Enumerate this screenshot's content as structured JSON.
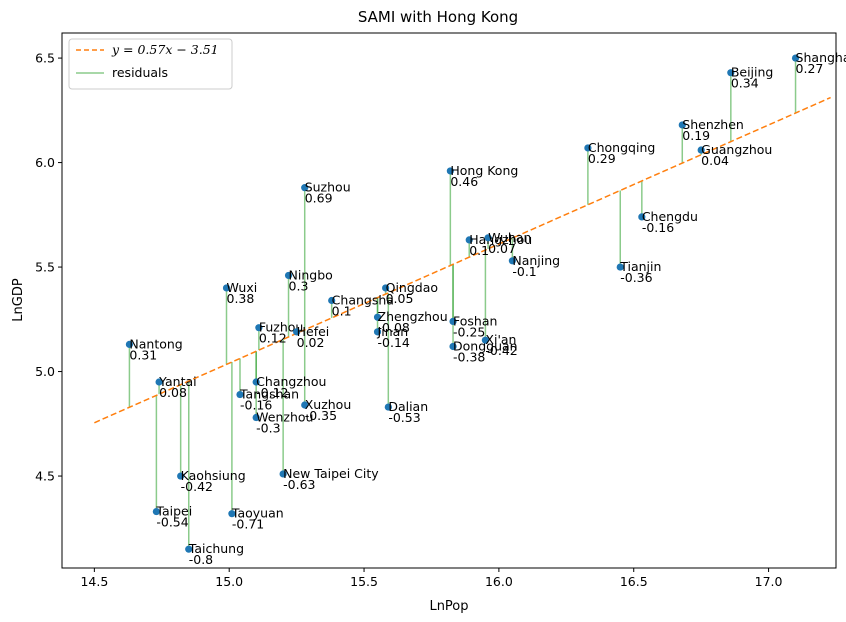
{
  "chart_data": {
    "type": "scatter",
    "title": "SAMI with Hong Kong",
    "xlabel": "LnPop",
    "ylabel": "LnGDP",
    "xlim": [
      14.38,
      17.25
    ],
    "ylim": [
      4.06,
      6.62
    ],
    "xticks": [
      14.5,
      15.0,
      15.5,
      16.0,
      16.5,
      17.0
    ],
    "xtick_labels": [
      "14.5",
      "15.0",
      "15.5",
      "16.0",
      "16.5",
      "17.0"
    ],
    "yticks": [
      4.5,
      5.0,
      5.5,
      6.0,
      6.5
    ],
    "ytick_labels": [
      "4.5",
      "5.0",
      "5.5",
      "6.0",
      "6.5"
    ],
    "grid": false,
    "legend_position": "top-left",
    "fit": {
      "slope": 0.57,
      "intercept": -3.51,
      "x_range": [
        14.5,
        17.23
      ]
    },
    "legend": {
      "fit_prefix": "y = 0.57x − 3.51",
      "residuals_label": "residuals"
    },
    "colors": {
      "points": "#1f77b4",
      "fit_line": "#ff7f0e",
      "residuals": "#2ca02c"
    },
    "points": [
      {
        "name": "Shanghai",
        "x": 17.1,
        "y": 6.5,
        "residual": "0.27"
      },
      {
        "name": "Beijing",
        "x": 16.86,
        "y": 6.43,
        "residual": "0.34"
      },
      {
        "name": "Shenzhen",
        "x": 16.68,
        "y": 6.18,
        "residual": "0.19"
      },
      {
        "name": "Guangzhou",
        "x": 16.75,
        "y": 6.06,
        "residual": "0.04"
      },
      {
        "name": "Chongqing",
        "x": 16.33,
        "y": 6.07,
        "residual": "0.29"
      },
      {
        "name": "Chengdu",
        "x": 16.53,
        "y": 5.74,
        "residual": "-0.16"
      },
      {
        "name": "Tianjin",
        "x": 16.45,
        "y": 5.5,
        "residual": "-0.36"
      },
      {
        "name": "Hong Kong",
        "x": 15.82,
        "y": 5.96,
        "residual": "0.46"
      },
      {
        "name": "Suzhou",
        "x": 15.28,
        "y": 5.88,
        "residual": "0.69"
      },
      {
        "name": "Hangzhou",
        "x": 15.89,
        "y": 5.63,
        "residual": "0.1"
      },
      {
        "name": "Wuhan",
        "x": 15.96,
        "y": 5.64,
        "residual": "0.07"
      },
      {
        "name": "Nanjing",
        "x": 16.05,
        "y": 5.53,
        "residual": "-0.1"
      },
      {
        "name": "Ningbo",
        "x": 15.22,
        "y": 5.46,
        "residual": "0.3"
      },
      {
        "name": "Wuxi",
        "x": 14.99,
        "y": 5.4,
        "residual": "0.38"
      },
      {
        "name": "Qingdao",
        "x": 15.58,
        "y": 5.4,
        "residual": "0.05"
      },
      {
        "name": "Changsha",
        "x": 15.38,
        "y": 5.34,
        "residual": "0.1"
      },
      {
        "name": "Zhengzhou",
        "x": 15.55,
        "y": 5.26,
        "residual": "-0.08"
      },
      {
        "name": "Foshan",
        "x": 15.83,
        "y": 5.24,
        "residual": "-0.25"
      },
      {
        "name": "Jinan",
        "x": 15.55,
        "y": 5.19,
        "residual": "-0.14"
      },
      {
        "name": "Fuzhou",
        "x": 15.11,
        "y": 5.21,
        "residual": "0.12"
      },
      {
        "name": "Hefei",
        "x": 15.25,
        "y": 5.19,
        "residual": "0.02"
      },
      {
        "name": "Xi'an",
        "x": 15.95,
        "y": 5.15,
        "residual": "-0.42"
      },
      {
        "name": "Dongguan",
        "x": 15.83,
        "y": 5.12,
        "residual": "-0.38"
      },
      {
        "name": "Nantong",
        "x": 14.63,
        "y": 5.13,
        "residual": "0.31"
      },
      {
        "name": "Changzhou",
        "x": 15.1,
        "y": 4.95,
        "residual": "-0.12"
      },
      {
        "name": "Yantai",
        "x": 14.74,
        "y": 4.95,
        "residual": "0.08"
      },
      {
        "name": "Tangshan",
        "x": 15.04,
        "y": 4.89,
        "residual": "-0.16"
      },
      {
        "name": "Dalian",
        "x": 15.59,
        "y": 4.83,
        "residual": "-0.53"
      },
      {
        "name": "Xuzhou",
        "x": 15.28,
        "y": 4.84,
        "residual": "-0.35"
      },
      {
        "name": "Wenzhou",
        "x": 15.1,
        "y": 4.78,
        "residual": "-0.3"
      },
      {
        "name": "New Taipei City",
        "x": 15.2,
        "y": 4.51,
        "residual": "-0.63"
      },
      {
        "name": "Kaohsiung",
        "x": 14.82,
        "y": 4.5,
        "residual": "-0.42"
      },
      {
        "name": "Taipei",
        "x": 14.73,
        "y": 4.33,
        "residual": "-0.54"
      },
      {
        "name": "Taoyuan",
        "x": 15.01,
        "y": 4.32,
        "residual": "-0.71"
      },
      {
        "name": "Taichung",
        "x": 14.85,
        "y": 4.15,
        "residual": "-0.8"
      }
    ]
  }
}
